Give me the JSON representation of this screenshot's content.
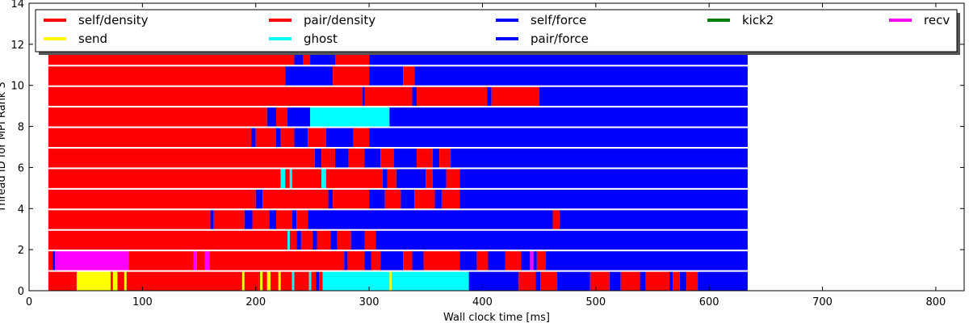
{
  "chart_data": {
    "type": "timeline",
    "xlabel": "Wall clock time [ms]",
    "ylabel": "Thread ID for MPI Rank 3",
    "xlim": [
      0,
      825
    ],
    "ylim": [
      0,
      14
    ],
    "xticks": [
      0,
      100,
      200,
      300,
      400,
      500,
      600,
      700,
      800
    ],
    "yticks": [
      0,
      2,
      4,
      6,
      8,
      10,
      12,
      14
    ],
    "grid": false,
    "legend": {
      "placement": "top",
      "entries": [
        {
          "label": "self/density",
          "color": "#ff0000"
        },
        {
          "label": "pair/density",
          "color": "#ff0000"
        },
        {
          "label": "self/force",
          "color": "#0000ff"
        },
        {
          "label": "kick2",
          "color": "#008000"
        },
        {
          "label": "recv",
          "color": "#ff00ff"
        },
        {
          "label": "send",
          "color": "#ffff00"
        },
        {
          "label": "ghost",
          "color": "#00ffff"
        },
        {
          "label": "pair/force",
          "color": "#0000ff"
        }
      ]
    },
    "task_colors": {
      "self/density": "#ff0000",
      "pair/density": "#ff0000",
      "self/force": "#0000ff",
      "pair/force": "#0000ff",
      "kick2": "#008000",
      "recv": "#ff00ff",
      "send": "#ffff00",
      "ghost": "#00ffff"
    },
    "threads": [
      {
        "id": 0,
        "segments": [
          [
            "pair/density",
            17,
            42
          ],
          [
            "send",
            42,
            72
          ],
          [
            "pair/density",
            72,
            74
          ],
          [
            "send",
            74,
            78
          ],
          [
            "pair/density",
            78,
            84
          ],
          [
            "send",
            84,
            86
          ],
          [
            "pair/density",
            86,
            188
          ],
          [
            "send",
            188,
            190
          ],
          [
            "pair/density",
            190,
            203
          ],
          [
            "kick2",
            203,
            204
          ],
          [
            "send",
            204,
            206
          ],
          [
            "pair/density",
            206,
            210
          ],
          [
            "send",
            210,
            213
          ],
          [
            "pair/density",
            213,
            220
          ],
          [
            "send",
            220,
            222
          ],
          [
            "pair/density",
            222,
            232
          ],
          [
            "ghost",
            232,
            234
          ],
          [
            "pair/density",
            234,
            247
          ],
          [
            "ghost",
            247,
            249
          ],
          [
            "pair/density",
            249,
            253
          ],
          [
            "self/force",
            253,
            256
          ],
          [
            "pair/density",
            256,
            259
          ],
          [
            "ghost",
            259,
            318
          ],
          [
            "send",
            318,
            320
          ],
          [
            "ghost",
            320,
            388
          ],
          [
            "self/force",
            388,
            432
          ],
          [
            "pair/density",
            432,
            447
          ],
          [
            "self/force",
            447,
            451
          ],
          [
            "pair/density",
            451,
            466
          ],
          [
            "self/force",
            466,
            495
          ],
          [
            "pair/density",
            495,
            512
          ],
          [
            "self/force",
            512,
            522
          ],
          [
            "pair/density",
            522,
            539
          ],
          [
            "self/force",
            539,
            544
          ],
          [
            "pair/density",
            544,
            565
          ],
          [
            "self/force",
            565,
            568
          ],
          [
            "pair/density",
            568,
            574
          ],
          [
            "self/force",
            574,
            580
          ],
          [
            "pair/density",
            580,
            590
          ],
          [
            "self/force",
            590,
            634
          ]
        ]
      },
      {
        "id": 1,
        "segments": [
          [
            "pair/density",
            17,
            21
          ],
          [
            "self/force",
            21,
            23
          ],
          [
            "recv",
            23,
            88
          ],
          [
            "pair/density",
            88,
            145
          ],
          [
            "recv",
            145,
            148
          ],
          [
            "pair/density",
            148,
            155
          ],
          [
            "recv",
            155,
            159
          ],
          [
            "pair/density",
            159,
            278
          ],
          [
            "self/force",
            278,
            281
          ],
          [
            "pair/density",
            281,
            296
          ],
          [
            "self/force",
            296,
            302
          ],
          [
            "pair/density",
            302,
            310
          ],
          [
            "self/force",
            310,
            330
          ],
          [
            "pair/density",
            330,
            338
          ],
          [
            "self/force",
            338,
            348
          ],
          [
            "pair/density",
            348,
            380
          ],
          [
            "self/force",
            380,
            395
          ],
          [
            "pair/density",
            395,
            405
          ],
          [
            "self/force",
            405,
            420
          ],
          [
            "pair/density",
            420,
            434
          ],
          [
            "self/force",
            434,
            442
          ],
          [
            "recv",
            442,
            445
          ],
          [
            "self/force",
            445,
            448
          ],
          [
            "pair/density",
            448,
            456
          ],
          [
            "self/force",
            456,
            634
          ]
        ]
      },
      {
        "id": 2,
        "segments": [
          [
            "pair/density",
            17,
            228
          ],
          [
            "ghost",
            228,
            230
          ],
          [
            "pair/density",
            230,
            236
          ],
          [
            "self/force",
            236,
            240
          ],
          [
            "pair/density",
            240,
            250
          ],
          [
            "self/force",
            250,
            254
          ],
          [
            "pair/density",
            254,
            266
          ],
          [
            "self/force",
            266,
            272
          ],
          [
            "pair/density",
            272,
            284
          ],
          [
            "self/force",
            284,
            296
          ],
          [
            "pair/density",
            296,
            306
          ],
          [
            "self/force",
            306,
            634
          ]
        ]
      },
      {
        "id": 3,
        "segments": [
          [
            "pair/density",
            17,
            160
          ],
          [
            "self/force",
            160,
            163
          ],
          [
            "pair/density",
            163,
            190
          ],
          [
            "self/force",
            190,
            197
          ],
          [
            "pair/density",
            197,
            212
          ],
          [
            "self/force",
            212,
            218
          ],
          [
            "pair/density",
            218,
            232
          ],
          [
            "self/force",
            232,
            236
          ],
          [
            "pair/density",
            236,
            246
          ],
          [
            "self/force",
            246,
            462
          ],
          [
            "pair/density",
            462,
            468
          ],
          [
            "self/force",
            468,
            634
          ]
        ]
      },
      {
        "id": 4,
        "segments": [
          [
            "pair/density",
            17,
            200
          ],
          [
            "self/force",
            200,
            206
          ],
          [
            "pair/density",
            206,
            264
          ],
          [
            "self/force",
            264,
            268
          ],
          [
            "pair/density",
            268,
            300
          ],
          [
            "self/force",
            300,
            314
          ],
          [
            "pair/density",
            314,
            328
          ],
          [
            "self/force",
            328,
            340
          ],
          [
            "pair/density",
            340,
            358
          ],
          [
            "self/force",
            358,
            364
          ],
          [
            "pair/density",
            364,
            380
          ],
          [
            "self/force",
            380,
            634
          ]
        ]
      },
      {
        "id": 5,
        "segments": [
          [
            "pair/density",
            17,
            222
          ],
          [
            "ghost",
            222,
            226
          ],
          [
            "pair/density",
            226,
            230
          ],
          [
            "ghost",
            230,
            232
          ],
          [
            "pair/density",
            232,
            258
          ],
          [
            "ghost",
            258,
            262
          ],
          [
            "pair/density",
            262,
            312
          ],
          [
            "self/force",
            312,
            316
          ],
          [
            "pair/density",
            316,
            324
          ],
          [
            "self/force",
            324,
            350
          ],
          [
            "pair/density",
            350,
            356
          ],
          [
            "self/force",
            356,
            368
          ],
          [
            "pair/density",
            368,
            380
          ],
          [
            "self/force",
            380,
            634
          ]
        ]
      },
      {
        "id": 6,
        "segments": [
          [
            "pair/density",
            17,
            252
          ],
          [
            "self/force",
            252,
            258
          ],
          [
            "pair/density",
            258,
            270
          ],
          [
            "self/force",
            270,
            282
          ],
          [
            "pair/density",
            282,
            296
          ],
          [
            "self/force",
            296,
            310
          ],
          [
            "pair/density",
            310,
            322
          ],
          [
            "self/force",
            322,
            342
          ],
          [
            "pair/density",
            342,
            356
          ],
          [
            "self/force",
            356,
            362
          ],
          [
            "pair/density",
            362,
            372
          ],
          [
            "self/force",
            372,
            634
          ]
        ]
      },
      {
        "id": 7,
        "segments": [
          [
            "pair/density",
            17,
            196
          ],
          [
            "self/force",
            196,
            200
          ],
          [
            "pair/density",
            200,
            218
          ],
          [
            "self/force",
            218,
            222
          ],
          [
            "pair/density",
            222,
            234
          ],
          [
            "self/force",
            234,
            246
          ],
          [
            "pair/density",
            246,
            262
          ],
          [
            "self/force",
            262,
            286
          ],
          [
            "pair/density",
            286,
            300
          ],
          [
            "self/force",
            300,
            634
          ]
        ]
      },
      {
        "id": 8,
        "segments": [
          [
            "pair/density",
            17,
            210
          ],
          [
            "self/force",
            210,
            218
          ],
          [
            "pair/density",
            218,
            228
          ],
          [
            "self/force",
            228,
            248
          ],
          [
            "ghost",
            248,
            318
          ],
          [
            "self/force",
            318,
            634
          ]
        ]
      },
      {
        "id": 9,
        "segments": [
          [
            "pair/density",
            17,
            294
          ],
          [
            "self/force",
            294,
            296
          ],
          [
            "pair/density",
            296,
            338
          ],
          [
            "self/force",
            338,
            342
          ],
          [
            "pair/density",
            342,
            404
          ],
          [
            "self/force",
            404,
            408
          ],
          [
            "pair/density",
            408,
            450
          ],
          [
            "self/force",
            450,
            634
          ]
        ]
      },
      {
        "id": 10,
        "segments": [
          [
            "pair/density",
            17,
            226
          ],
          [
            "self/force",
            226,
            268
          ],
          [
            "pair/density",
            268,
            300
          ],
          [
            "self/force",
            300,
            330
          ],
          [
            "pair/density",
            330,
            340
          ],
          [
            "self/force",
            340,
            634
          ]
        ]
      },
      {
        "id": 11,
        "segments": [
          [
            "pair/density",
            17,
            234
          ],
          [
            "self/force",
            234,
            242
          ],
          [
            "pair/density",
            242,
            248
          ],
          [
            "self/force",
            248,
            270
          ],
          [
            "pair/density",
            270,
            300
          ],
          [
            "self/force",
            300,
            634
          ]
        ]
      }
    ]
  }
}
